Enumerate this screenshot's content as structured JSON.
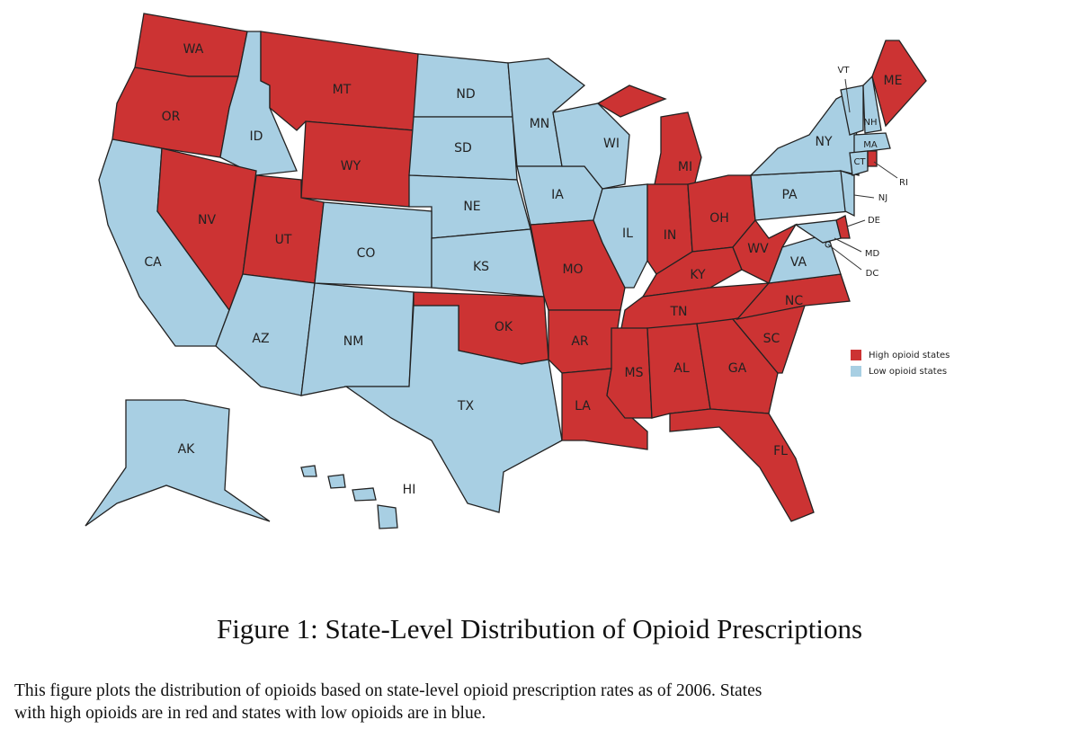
{
  "map": {
    "states": [
      {
        "label": "WA",
        "color": "#cc3333"
      },
      {
        "label": "OR",
        "color": "#cc3333"
      },
      {
        "label": "ID",
        "color": "#a8cfe3"
      },
      {
        "label": "MT",
        "color": "#cc3333"
      },
      {
        "label": "WY",
        "color": "#cc3333"
      },
      {
        "label": "ND",
        "color": "#a8cfe3"
      },
      {
        "label": "SD",
        "color": "#a8cfe3"
      },
      {
        "label": "NE",
        "color": "#a8cfe3"
      },
      {
        "label": "CA",
        "color": "#a8cfe3"
      },
      {
        "label": "NV",
        "color": "#cc3333"
      },
      {
        "label": "UT",
        "color": "#cc3333"
      },
      {
        "label": "CO",
        "color": "#a8cfe3"
      },
      {
        "label": "AZ",
        "color": "#a8cfe3"
      },
      {
        "label": "NM",
        "color": "#a8cfe3"
      },
      {
        "label": "KS",
        "color": "#a8cfe3"
      },
      {
        "label": "OK",
        "color": "#cc3333"
      },
      {
        "label": "TX",
        "color": "#a8cfe3"
      },
      {
        "label": "MN",
        "color": "#a8cfe3"
      },
      {
        "label": "IA",
        "color": "#a8cfe3"
      },
      {
        "label": "MO",
        "color": "#cc3333"
      },
      {
        "label": "AR",
        "color": "#cc3333"
      },
      {
        "label": "LA",
        "color": "#cc3333"
      },
      {
        "label": "WI",
        "color": "#a8cfe3"
      },
      {
        "label": "IL",
        "color": "#a8cfe3"
      },
      {
        "label": "MI",
        "color": "#cc3333"
      },
      {
        "label": "IN",
        "color": "#cc3333"
      },
      {
        "label": "OH",
        "color": "#cc3333"
      },
      {
        "label": "KY",
        "color": "#cc3333"
      },
      {
        "label": "TN",
        "color": "#cc3333"
      },
      {
        "label": "MS",
        "color": "#cc3333"
      },
      {
        "label": "AL",
        "color": "#cc3333"
      },
      {
        "label": "GA",
        "color": "#cc3333"
      },
      {
        "label": "FL",
        "color": "#cc3333"
      },
      {
        "label": "SC",
        "color": "#cc3333"
      },
      {
        "label": "NC",
        "color": "#cc3333"
      },
      {
        "label": "VA",
        "color": "#a8cfe3"
      },
      {
        "label": "WV",
        "color": "#cc3333"
      },
      {
        "label": "PA",
        "color": "#a8cfe3"
      },
      {
        "label": "NY",
        "color": "#a8cfe3"
      },
      {
        "label": "NJ",
        "color": "#a8cfe3"
      },
      {
        "label": "DE",
        "color": "#cc3333"
      },
      {
        "label": "MD",
        "color": "#a8cfe3"
      },
      {
        "label": "DC",
        "color": "#a8cfe3"
      },
      {
        "label": "VT",
        "color": "#a8cfe3"
      },
      {
        "label": "NH",
        "color": "#a8cfe3"
      },
      {
        "label": "ME",
        "color": "#cc3333"
      },
      {
        "label": "MA",
        "color": "#a8cfe3"
      },
      {
        "label": "CT",
        "color": "#a8cfe3"
      },
      {
        "label": "RI",
        "color": "#cc3333"
      },
      {
        "label": "AK",
        "color": "#a8cfe3"
      },
      {
        "label": "HI",
        "color": "#a8cfe3"
      }
    ],
    "legend": [
      {
        "label": "High opioid states",
        "color": "#cc3333"
      },
      {
        "label": "Low opioid states",
        "color": "#a8cfe3"
      }
    ]
  },
  "caption": "Figure 1: State-Level Distribution of Opioid Prescriptions",
  "description": [
    "This figure plots the distribution of opioids based on state-level opioid prescription rates as of 2006. States",
    "with high opioids are in red and states with low opioids are in blue."
  ]
}
